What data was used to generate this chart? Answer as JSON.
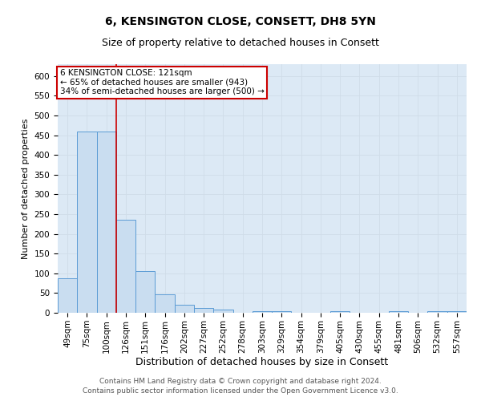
{
  "title": "6, KENSINGTON CLOSE, CONSETT, DH8 5YN",
  "subtitle": "Size of property relative to detached houses in Consett",
  "xlabel": "Distribution of detached houses by size in Consett",
  "ylabel": "Number of detached properties",
  "categories": [
    "49sqm",
    "75sqm",
    "100sqm",
    "126sqm",
    "151sqm",
    "176sqm",
    "202sqm",
    "227sqm",
    "252sqm",
    "278sqm",
    "303sqm",
    "329sqm",
    "354sqm",
    "379sqm",
    "405sqm",
    "430sqm",
    "455sqm",
    "481sqm",
    "506sqm",
    "532sqm",
    "557sqm"
  ],
  "values": [
    88,
    460,
    460,
    235,
    105,
    47,
    20,
    13,
    8,
    0,
    5,
    5,
    0,
    0,
    5,
    0,
    0,
    5,
    0,
    5,
    5
  ],
  "bar_color": "#c9ddf0",
  "bar_edge_color": "#5b9bd5",
  "property_line_label": "6 KENSINGTON CLOSE: 121sqm",
  "annotation_line1": "← 65% of detached houses are smaller (943)",
  "annotation_line2": "34% of semi-detached houses are larger (500) →",
  "annotation_box_color": "#ffffff",
  "annotation_box_edge_color": "#cc0000",
  "vline_color": "#cc0000",
  "vline_x": 2.5,
  "ylim": [
    0,
    630
  ],
  "yticks": [
    0,
    50,
    100,
    150,
    200,
    250,
    300,
    350,
    400,
    450,
    500,
    550,
    600
  ],
  "grid_color": "#d0dce8",
  "background_color": "#dce9f5",
  "footer1": "Contains HM Land Registry data © Crown copyright and database right 2024.",
  "footer2": "Contains public sector information licensed under the Open Government Licence v3.0.",
  "title_fontsize": 10,
  "subtitle_fontsize": 9,
  "xlabel_fontsize": 9,
  "ylabel_fontsize": 8,
  "tick_fontsize": 7.5,
  "annotation_fontsize": 7.5,
  "footer_fontsize": 6.5
}
